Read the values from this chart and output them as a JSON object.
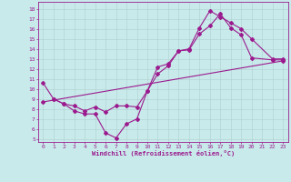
{
  "line1_x": [
    0,
    1,
    2,
    3,
    4,
    5,
    6,
    7,
    8,
    9,
    10,
    11,
    12,
    13,
    14,
    15,
    16,
    17,
    18,
    19,
    20,
    22,
    23
  ],
  "line1_y": [
    10.6,
    9.0,
    8.5,
    7.8,
    7.5,
    7.5,
    5.6,
    5.1,
    6.5,
    7.0,
    9.8,
    11.5,
    12.3,
    13.8,
    13.9,
    15.5,
    16.3,
    17.5,
    16.1,
    15.4,
    13.1,
    12.9,
    12.9
  ],
  "line2_x": [
    0,
    23
  ],
  "line2_y": [
    8.7,
    12.8
  ],
  "line3_x": [
    1,
    2,
    3,
    4,
    5,
    6,
    7,
    8,
    9,
    10,
    11,
    12,
    13,
    14,
    15,
    16,
    17,
    18,
    19,
    20,
    22,
    23
  ],
  "line3_y": [
    9.0,
    8.5,
    8.3,
    7.8,
    8.2,
    7.7,
    8.3,
    8.3,
    8.2,
    9.8,
    12.2,
    12.5,
    13.8,
    14.0,
    16.1,
    17.8,
    17.2,
    16.6,
    16.0,
    15.0,
    13.0,
    13.0
  ],
  "color": "#9b1b8e",
  "bg_color": "#c8eaea",
  "grid_color": "#b0d0d0",
  "xlabel": "Windchill (Refroidissement éolien,°C)",
  "xlim": [
    -0.5,
    23.5
  ],
  "ylim": [
    4.7,
    18.7
  ],
  "yticks": [
    5,
    6,
    7,
    8,
    9,
    10,
    11,
    12,
    13,
    14,
    15,
    16,
    17,
    18
  ],
  "xticks": [
    0,
    1,
    2,
    3,
    4,
    5,
    6,
    7,
    8,
    9,
    10,
    11,
    12,
    13,
    14,
    15,
    16,
    17,
    18,
    19,
    20,
    21,
    22,
    23
  ],
  "marker": "D",
  "markersize": 2.0,
  "linewidth": 0.8
}
